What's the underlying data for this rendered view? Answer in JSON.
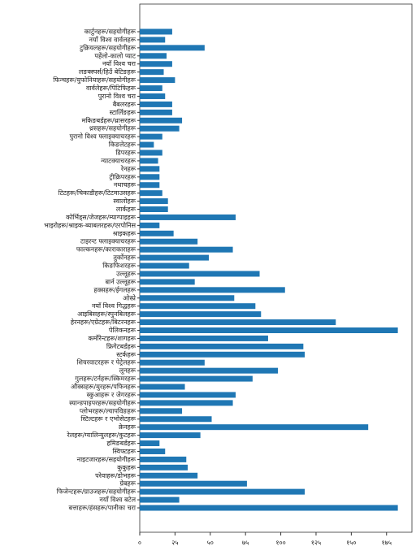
{
  "chart_data": {
    "type": "barh",
    "categories": [
      "कार्टुनहरू/सहयोगीहरू",
      "नयाँ विश्व वार्वलहरू",
      "टुक्रियलहरू/सहयोगीहरू",
      "पहेंलो-कालो प्याट",
      "नयाँ विश्व चरा",
      "लङक्स्पर्स/हिउँ बेटिङहरू",
      "फिन्चहरू/युफोनियाहरू/सहयोगीहरू",
      "वार्वलेहरू/पिटिफिहरू",
      "पुरानो विश्व चरा",
      "बैबलरहरू",
      "स्टार्लिङहरू",
      "मकिङबर्डहरू/थ्रासरहरू",
      "थ्रसहरू/सहयोगीहरू",
      "पुरानो विश्व फ्लाइक्याचरहरू",
      "किङलेटहरू",
      "डिपरहरू",
      "न्याटक्याचरहरू",
      "रेनहरू",
      "ट्रीक्रिपरहरू",
      "नथाचहरू",
      "टिटहरू/चिकाडीहरू/टिटमाउसहरू",
      "स्वालोहरू",
      "लार्कहरू",
      "कोर्भिड्स/जेजहरू/म्याग्पाइहरू",
      "भाइरोहरू/श्राइक-ब्याबलरहरू/एरपोनिस",
      "श्राइकहरू",
      "टाइरन्ट फ्लाइक्याचरहरू",
      "फाल्कनहरू/काराकाराहरू",
      "तुर्कोनहरू",
      "किङफिशरहरू",
      "उल्लूहरू",
      "बार्न उल्लूहरू",
      "हक्सहरू/ईगलहरू",
      "ओस्प्रे",
      "नयाँ विश्व गिद्धहरू",
      "आइबिसहरू/स्पुनबिलहरू",
      "हेरनहरू/एग्रेटहरू/बिटरनहरू",
      "पेलिकनहरू",
      "कर्मोरेन्टहरू/शागहरू",
      "फ्रिगेटबर्डहरू",
      "स्टर्कहरू",
      "शियरवाटरहरू र पेट्रेलहरू",
      "लूनहरू",
      "गुलहरू/टर्नहरू/स्किमरहरू",
      "औक्सहरू/मुरहरू/पफिनहरू",
      "स्कुआहरू र जेगरहरू",
      "स्यान्डपाइपरहरू/सहयोगीहरू",
      "प्लोभरहरू/ल्यापविङहरू",
      "स्टिल्टहरू र एभोसेटहरू",
      "क्रेनहरू",
      "रेलहरू/ग्यालिन्युलहरू/कुटहरू",
      "हमिङबर्डहरू",
      "स्विफ्टहरू",
      "नाइटजारहरू/सहयोगीहरू",
      "कुकुहरू",
      "परेवाहरू/डोभहरू",
      "ग्रेबहरू",
      "फिजेन्टहरू/ग्राउजहरू/सहयोगीहरू",
      "नयाँ विश्व बटेल",
      "बत्ताहरू/हंसहरू/पानीका चरा"
    ],
    "values": [
      23,
      18,
      46,
      19,
      23,
      17,
      25,
      16,
      18,
      23,
      23,
      30,
      28,
      16,
      10,
      16,
      13,
      14,
      14,
      14,
      16,
      20,
      20,
      68,
      14,
      24,
      41,
      66,
      49,
      35,
      85,
      39,
      103,
      67,
      82,
      86,
      139,
      183,
      91,
      116,
      117,
      46,
      98,
      80,
      32,
      68,
      66,
      30,
      51,
      162,
      43,
      14,
      18,
      33,
      34,
      41,
      76,
      117,
      28,
      183
    ],
    "color": "#1f77b4",
    "xlim": [
      0,
      193
    ],
    "xticks": [
      {
        "value": 0,
        "label": "०"
      },
      {
        "value": 25,
        "label": "२५"
      },
      {
        "value": 50,
        "label": "५०"
      },
      {
        "value": 75,
        "label": "७५"
      },
      {
        "value": 100,
        "label": "१००"
      },
      {
        "value": 125,
        "label": "१२५"
      },
      {
        "value": 150,
        "label": "१५०"
      },
      {
        "value": 175,
        "label": "१७५"
      }
    ]
  }
}
